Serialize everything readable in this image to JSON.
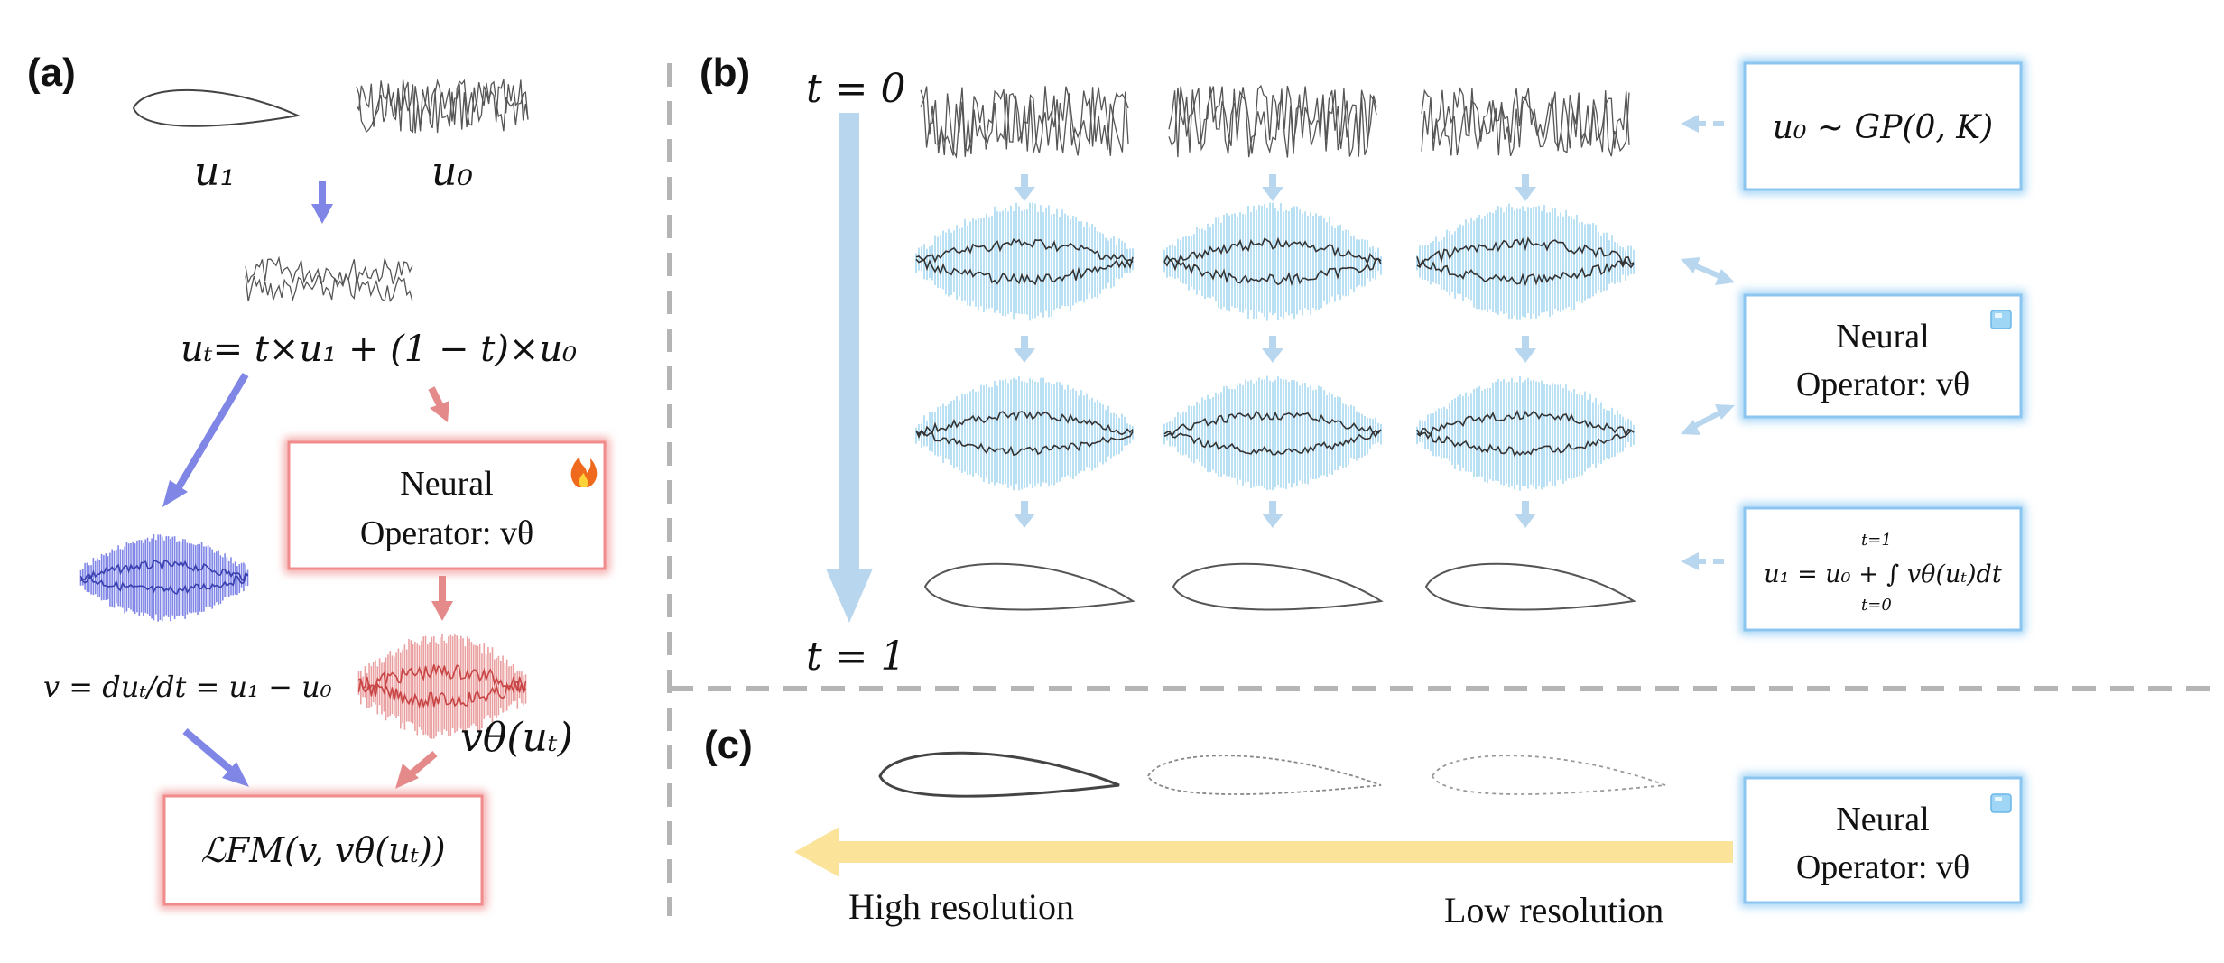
{
  "panels": {
    "a": "(a)",
    "b": "(b)",
    "c": "(c)"
  },
  "panel_a": {
    "label_u1": "u₁",
    "label_u0": "u₀",
    "interp_eq": "uₜ= t×u₁ + (1 − t)×u₀",
    "neural_line1": "Neural",
    "neural_line2": "Operator: vθ",
    "velocity_eq": "v = duₜ/dt = u₁ − u₀",
    "v_theta_label": "vθ(uₜ)",
    "loss": "ℒFM(v, vθ(uₜ))",
    "trainable_icon": "flame-icon"
  },
  "panel_b": {
    "t0": "t = 0",
    "t1": "t = 1",
    "prior": "u₀ ~ GP(0, K)",
    "neural_line1": "Neural",
    "neural_line2": "Operator: vθ",
    "ode": "u₁ = u₀ + ∫ vθ(uₜ)dt",
    "ode_upper": "t=1",
    "ode_lower": "t=0",
    "frozen_icon": "ice-cube-icon"
  },
  "panel_c": {
    "neural_line1": "Neural",
    "neural_line2": "Operator: vθ",
    "high_res": "High resolution",
    "low_res": "Low resolution",
    "frozen_icon": "ice-cube-icon"
  },
  "colors": {
    "blue_box": "#8cc6f0",
    "red_box": "#f08c8c",
    "blue_arrow": "#b8d6ee",
    "purple_arrow": "#7f86e6",
    "red_arrow": "#e58a8a",
    "yellow_arrow": "#fbe49a",
    "divider": "#b5b5b5"
  }
}
